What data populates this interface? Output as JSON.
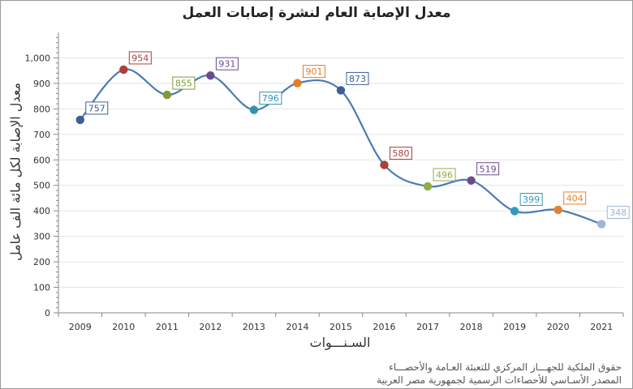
{
  "chart_data": {
    "type": "line",
    "title": "معدل الإصابة العام لنشرة إصابات العمل",
    "xlabel": "السـنـــوات",
    "ylabel": "معدل الإصابة لكل مائة الف عامل",
    "x": [
      "2009",
      "2010",
      "2011",
      "2012",
      "2013",
      "2014",
      "2015",
      "2016",
      "2017",
      "2018",
      "2019",
      "2020",
      "2021"
    ],
    "series": [
      {
        "values": [
          757,
          954,
          855,
          931,
          796,
          901,
          873,
          580,
          496,
          519,
          399,
          404,
          348
        ]
      }
    ],
    "data_labels": [
      "757",
      "954",
      "855",
      "931",
      "796",
      "901",
      "873",
      "580",
      "496",
      "519",
      "399",
      "404",
      "348"
    ],
    "ylim": [
      0,
      1100
    ],
    "yticks": [
      0,
      100,
      200,
      300,
      400,
      500,
      600,
      700,
      800,
      900,
      1000
    ],
    "ytick_labels": [
      "0",
      "100",
      "200",
      "300",
      "400",
      "500",
      "600",
      "700",
      "800",
      "900",
      "1,000"
    ],
    "grid": true,
    "line_color": "#4a7bb3",
    "marker_colors": [
      "#3d5f96",
      "#a8403c",
      "#7f9b3a",
      "#674c8f",
      "#3293ae",
      "#e47d28",
      "#3d5f96",
      "#a8403c",
      "#92aa4c",
      "#684c8e",
      "#319bbd",
      "#e8822a",
      "#9fb4d7"
    ]
  },
  "footer": {
    "line1": "حقوق الملكية للجهـــاز المركزي للتعبئة العـامة والأحصـــاء",
    "line2": "المصدر الأسـاسي للأحصاءات الرسمية لجمهورية مصر العربية"
  }
}
